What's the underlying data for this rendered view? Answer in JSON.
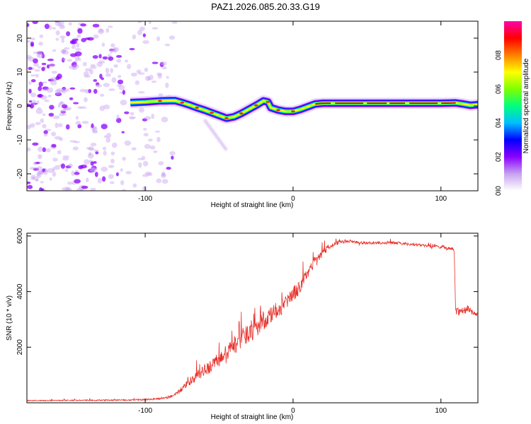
{
  "title": "PAZ1.2026.085.20.33.G19",
  "chart_data": [
    {
      "type": "heatmap",
      "name": "spectrogram",
      "xlabel": "Height of straight line (km)",
      "ylabel": "Frequency (Hz)",
      "xlim": [
        -180,
        125
      ],
      "ylim": [
        -25,
        25
      ],
      "xticks": [
        -100,
        0,
        100
      ],
      "yticks": [
        -20,
        -10,
        0,
        10,
        20
      ],
      "colorbar": {
        "label": "Normalized spectral amplitude",
        "range": [
          0,
          1
        ],
        "ticks": [
          0.0,
          0.2,
          0.4,
          0.6,
          0.8
        ],
        "tick_labels": [
          "0.0",
          "0.2",
          "0.4",
          "0.6",
          "0.8"
        ],
        "colors": [
          "#ffffff",
          "#c7a2f0",
          "#8b00ff",
          "#0000ff",
          "#00bfff",
          "#00ff7f",
          "#7fff00",
          "#ffff00",
          "#ff7f00",
          "#ff0000",
          "#ff00aa"
        ]
      },
      "noise_region_x": [
        -180,
        -80
      ],
      "signal_start_x": -110,
      "center_frequency_track": [
        [
          -110,
          1.0
        ],
        [
          -100,
          1.2
        ],
        [
          -90,
          1.5
        ],
        [
          -80,
          1.6
        ],
        [
          -75,
          1.0
        ],
        [
          -70,
          0.3
        ],
        [
          -65,
          -0.5
        ],
        [
          -60,
          -1.2
        ],
        [
          -55,
          -2.0
        ],
        [
          -50,
          -2.8
        ],
        [
          -45,
          -3.6
        ],
        [
          -40,
          -3.2
        ],
        [
          -35,
          -2.2
        ],
        [
          -30,
          -1.0
        ],
        [
          -25,
          0.2
        ],
        [
          -20,
          1.5
        ],
        [
          -17,
          1.2
        ],
        [
          -15,
          -0.5
        ],
        [
          -10,
          -1.2
        ],
        [
          -5,
          -1.6
        ],
        [
          0,
          -1.6
        ],
        [
          5,
          -1.0
        ],
        [
          10,
          -0.2
        ],
        [
          15,
          0.6
        ],
        [
          20,
          0.8
        ],
        [
          40,
          0.8
        ],
        [
          60,
          0.8
        ],
        [
          80,
          0.8
        ],
        [
          100,
          0.8
        ],
        [
          110,
          0.9
        ],
        [
          115,
          0.6
        ],
        [
          120,
          0.2
        ],
        [
          125,
          0.4
        ]
      ],
      "faint_branch": [
        [
          -60,
          -4
        ],
        [
          -55,
          -7
        ],
        [
          -50,
          -10
        ],
        [
          -45,
          -13
        ]
      ]
    },
    {
      "type": "line",
      "name": "snr",
      "xlabel": "Height of straight line (km)",
      "ylabel": "SNR (10 * v/v)",
      "xlim": [
        -180,
        125
      ],
      "ylim": [
        0,
        6100
      ],
      "xticks": [
        -100,
        0,
        100
      ],
      "yticks": [
        2000,
        4000,
        6000
      ],
      "color": "#e8302a",
      "series": [
        {
          "name": "SNR",
          "x": [
            -180,
            -170,
            -160,
            -150,
            -140,
            -130,
            -120,
            -110,
            -100,
            -90,
            -85,
            -80,
            -75,
            -70,
            -65,
            -60,
            -55,
            -50,
            -45,
            -40,
            -35,
            -30,
            -25,
            -20,
            -15,
            -10,
            -5,
            0,
            5,
            10,
            15,
            20,
            25,
            30,
            35,
            40,
            45,
            50,
            60,
            70,
            80,
            90,
            100,
            105,
            108,
            109,
            110,
            112,
            115,
            118,
            120,
            125
          ],
          "values": [
            80,
            80,
            85,
            90,
            90,
            90,
            95,
            100,
            120,
            150,
            180,
            300,
            500,
            750,
            950,
            1150,
            1350,
            1550,
            1800,
            2050,
            2300,
            2500,
            2700,
            2950,
            3150,
            3350,
            3600,
            3850,
            4200,
            4700,
            5100,
            5400,
            5650,
            5750,
            5800,
            5800,
            5750,
            5750,
            5750,
            5750,
            5700,
            5650,
            5600,
            5550,
            5550,
            5400,
            3300,
            3300,
            3300,
            3400,
            3300,
            3150
          ],
          "noise_amplitude": [
            40,
            40,
            40,
            40,
            40,
            40,
            45,
            50,
            60,
            70,
            80,
            120,
            200,
            300,
            350,
            450,
            500,
            550,
            600,
            650,
            700,
            700,
            700,
            700,
            650,
            600,
            550,
            500,
            450,
            400,
            350,
            300,
            200,
            150,
            120,
            100,
            100,
            100,
            100,
            100,
            100,
            100,
            100,
            100,
            100,
            100,
            250,
            300,
            300,
            250,
            200,
            150
          ]
        }
      ]
    }
  ]
}
